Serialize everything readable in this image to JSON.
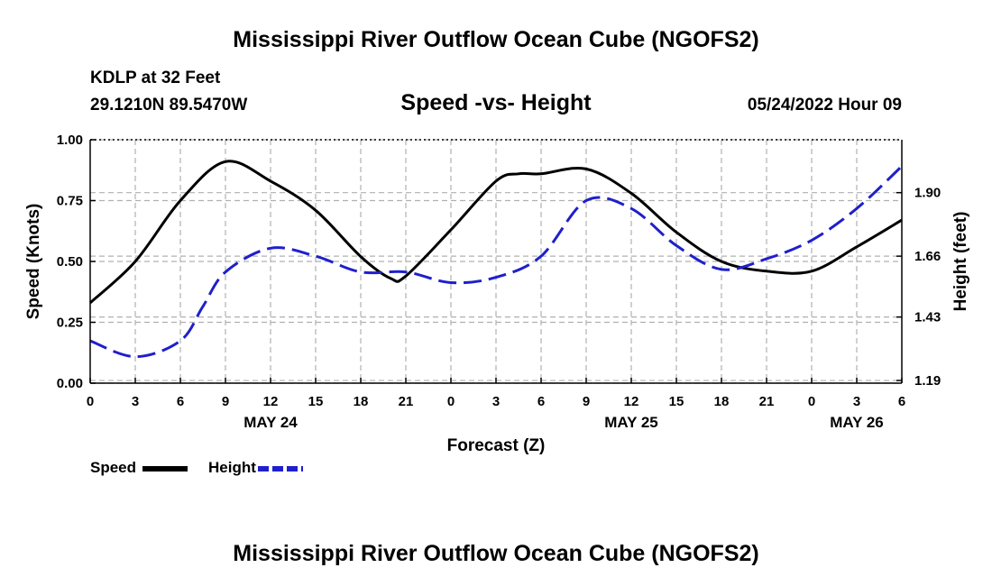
{
  "page": {
    "title": "Mississippi River Outflow Ocean Cube (NGOFS2)",
    "title_repeat": "Mississippi River Outflow Ocean Cube (NGOFS2)",
    "station": "KDLP at 32 Feet",
    "coords": "29.1210N  89.5470W",
    "subtitle": "Speed -vs- Height",
    "date": "05/24/2022 Hour 09"
  },
  "legend": {
    "speed_label": "Speed",
    "height_label": "Height"
  },
  "colors": {
    "speed": "#000000",
    "height": "#1f1fcc",
    "grid": "#b0b0b0"
  },
  "chart_data": {
    "type": "line",
    "title": "Speed -vs- Height",
    "xlabel": "Forecast (Z)",
    "ylabel": "Speed (Knots)",
    "y2label": "Height (feet)",
    "xlim": [
      0,
      54
    ],
    "ylim": [
      0,
      1.0
    ],
    "y2lim": [
      1.18,
      2.1
    ],
    "grid": true,
    "x_ticks": [
      0,
      3,
      6,
      9,
      12,
      15,
      18,
      21,
      24,
      27,
      30,
      33,
      36,
      39,
      42,
      45,
      48,
      51,
      54
    ],
    "x_tick_labels": [
      "0",
      "3",
      "6",
      "9",
      "12",
      "15",
      "18",
      "21",
      "0",
      "3",
      "6",
      "9",
      "12",
      "15",
      "18",
      "21",
      "0",
      "3",
      "6"
    ],
    "date_labels": [
      {
        "x": 12,
        "label": "MAY 24"
      },
      {
        "x": 36,
        "label": "MAY 25"
      },
      {
        "x": 51,
        "label": "MAY 26"
      }
    ],
    "y_ticks": [
      0.0,
      0.25,
      0.5,
      0.75,
      1.0
    ],
    "y_tick_labels": [
      "0.00",
      "0.25",
      "0.50",
      "0.75",
      "1.00"
    ],
    "y2_ticks": [
      1.19,
      1.43,
      1.66,
      1.9
    ],
    "y2_tick_labels": [
      "1.19",
      "1.43",
      "1.66",
      "1.90"
    ],
    "series": [
      {
        "name": "Speed",
        "axis": "left",
        "style": "solid",
        "x": [
          0,
          3,
          6,
          9,
          12,
          15,
          18,
          20,
          21,
          24,
          27,
          28.5,
          30,
          33,
          36,
          39,
          42,
          45,
          48,
          51,
          54
        ],
        "values": [
          0.33,
          0.5,
          0.75,
          0.91,
          0.83,
          0.71,
          0.52,
          0.43,
          0.44,
          0.63,
          0.83,
          0.86,
          0.86,
          0.88,
          0.78,
          0.62,
          0.5,
          0.46,
          0.46,
          0.56,
          0.67
        ]
      },
      {
        "name": "Height",
        "axis": "right",
        "style": "dashed",
        "x": [
          0,
          3,
          6,
          7.5,
          9,
          12,
          15,
          18,
          21,
          24,
          27,
          30,
          33,
          36,
          39,
          42,
          45,
          48,
          51,
          54
        ],
        "values": [
          1.34,
          1.28,
          1.34,
          1.47,
          1.6,
          1.69,
          1.66,
          1.6,
          1.6,
          1.56,
          1.58,
          1.66,
          1.87,
          1.84,
          1.7,
          1.61,
          1.65,
          1.72,
          1.84,
          2.0
        ]
      }
    ]
  }
}
